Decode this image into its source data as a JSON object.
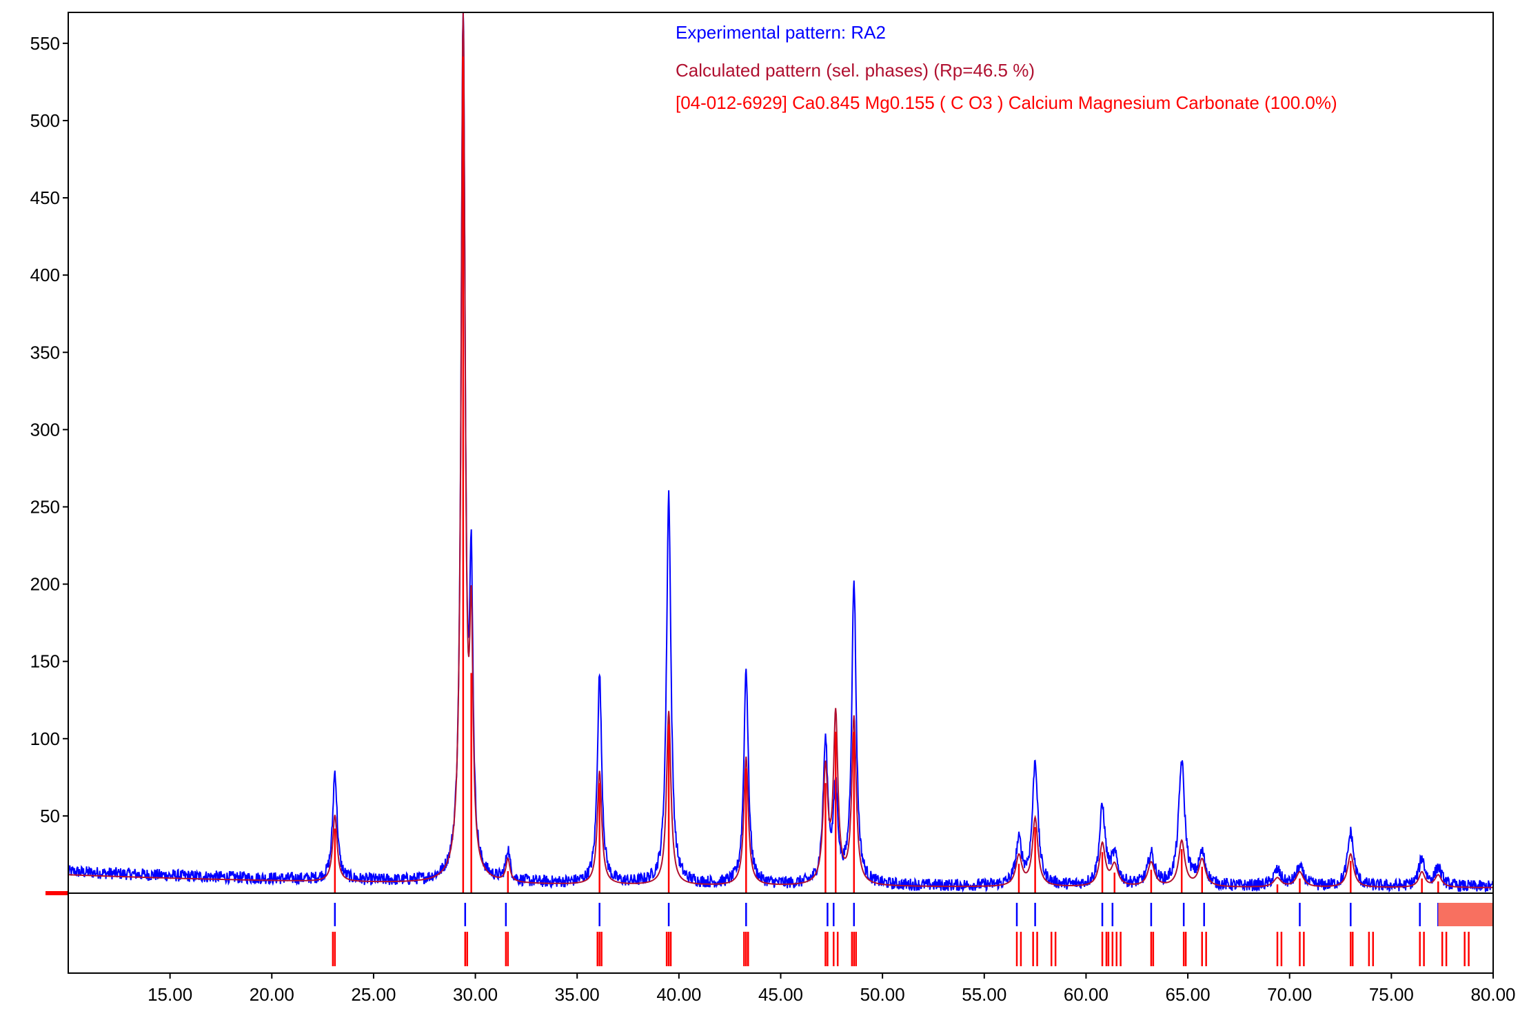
{
  "chart_data": {
    "type": "line",
    "title": "",
    "xlabel": "",
    "ylabel": "",
    "xlim": [
      10,
      80
    ],
    "ylim": [
      0,
      570
    ],
    "x_ticks": [
      "15.00",
      "20.00",
      "25.00",
      "30.00",
      "35.00",
      "40.00",
      "45.00",
      "50.00",
      "55.00",
      "60.00",
      "65.00",
      "70.00",
      "75.00",
      "80.00"
    ],
    "y_ticks": [
      "50",
      "100",
      "150",
      "200",
      "250",
      "300",
      "350",
      "400",
      "450",
      "500",
      "550"
    ],
    "grid": false,
    "legend_position": "top-right",
    "legend": [
      {
        "text": "Experimental pattern: RA2",
        "color": "#0000ff"
      },
      {
        "text": "Calculated pattern (sel. phases) (Rp=46.5 %)",
        "color": "#b01030"
      },
      {
        "text": "[04-012-6929] Ca0.845 Mg0.155 ( C O3 ) Calcium Magnesium Carbonate (100.0%)",
        "color": "#ff0000"
      }
    ],
    "colors": {
      "experimental": "#0000ff",
      "calculated": "#b01030",
      "phase": "#ff0000",
      "axis": "#000000"
    },
    "peaks": [
      {
        "x": 23.1,
        "exp": 70,
        "calc": 44,
        "w": 0.13
      },
      {
        "x": 29.4,
        "exp": 565,
        "calc": 570,
        "w": 0.12
      },
      {
        "x": 29.8,
        "exp": 180,
        "calc": 150,
        "w": 0.1
      },
      {
        "x": 31.6,
        "exp": 20,
        "calc": 15,
        "w": 0.12
      },
      {
        "x": 36.1,
        "exp": 135,
        "calc": 75,
        "w": 0.13
      },
      {
        "x": 39.5,
        "exp": 253,
        "calc": 115,
        "w": 0.13
      },
      {
        "x": 43.3,
        "exp": 140,
        "calc": 85,
        "w": 0.13
      },
      {
        "x": 47.2,
        "exp": 90,
        "calc": 75,
        "w": 0.14
      },
      {
        "x": 47.7,
        "exp": 60,
        "calc": 110,
        "w": 0.13
      },
      {
        "x": 48.6,
        "exp": 196,
        "calc": 110,
        "w": 0.13
      },
      {
        "x": 56.7,
        "exp": 28,
        "calc": 20,
        "w": 0.18
      },
      {
        "x": 57.5,
        "exp": 80,
        "calc": 45,
        "w": 0.16
      },
      {
        "x": 60.8,
        "exp": 50,
        "calc": 28,
        "w": 0.17
      },
      {
        "x": 61.4,
        "exp": 18,
        "calc": 14,
        "w": 0.2
      },
      {
        "x": 63.2,
        "exp": 20,
        "calc": 16,
        "w": 0.2
      },
      {
        "x": 64.7,
        "exp": 80,
        "calc": 30,
        "w": 0.18
      },
      {
        "x": 65.7,
        "exp": 20,
        "calc": 18,
        "w": 0.2
      },
      {
        "x": 69.4,
        "exp": 10,
        "calc": 6,
        "w": 0.22
      },
      {
        "x": 70.5,
        "exp": 12,
        "calc": 10,
        "w": 0.22
      },
      {
        "x": 73.0,
        "exp": 35,
        "calc": 22,
        "w": 0.18
      },
      {
        "x": 76.5,
        "exp": 18,
        "calc": 10,
        "w": 0.18
      },
      {
        "x": 77.3,
        "exp": 12,
        "calc": 8,
        "w": 0.2
      }
    ],
    "blue_ticks": [
      23.1,
      29.5,
      31.5,
      36.1,
      39.5,
      43.3,
      47.3,
      47.6,
      48.6,
      56.6,
      57.5,
      60.8,
      61.3,
      63.2,
      64.8,
      65.8,
      70.5,
      73.0,
      76.4,
      77.3
    ],
    "red_ticks": [
      23.0,
      23.1,
      29.5,
      29.6,
      31.5,
      31.6,
      36.0,
      36.1,
      36.2,
      39.4,
      39.5,
      39.6,
      43.2,
      43.3,
      43.4,
      47.2,
      47.3,
      47.6,
      47.8,
      48.5,
      48.6,
      48.7,
      56.6,
      56.8,
      57.4,
      57.6,
      58.3,
      58.5,
      60.8,
      61.0,
      61.1,
      61.3,
      61.5,
      61.7,
      63.2,
      63.3,
      64.8,
      64.9,
      65.7,
      65.9,
      69.4,
      69.6,
      70.5,
      70.7,
      73.0,
      73.1,
      73.9,
      74.1,
      76.4,
      76.6,
      77.5,
      77.7,
      78.6,
      78.8
    ],
    "background": {
      "start": 14,
      "decay_to": 4,
      "decay_rate": 0.06,
      "noise_amplitude": 4
    }
  }
}
